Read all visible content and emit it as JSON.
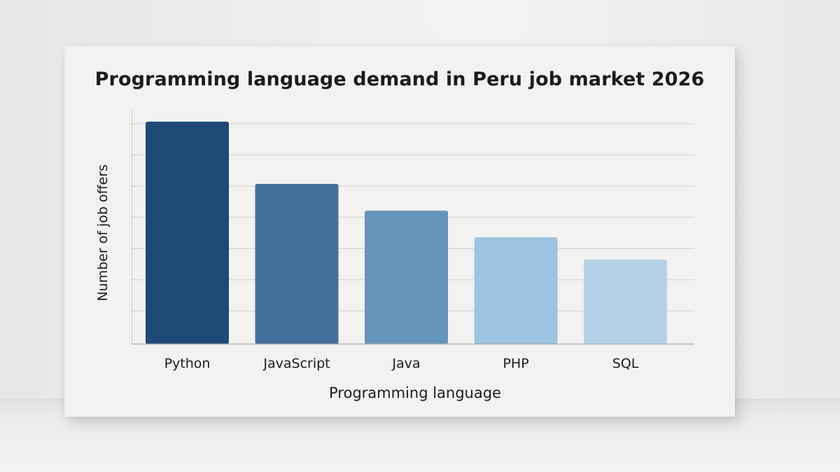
{
  "chart_data": {
    "type": "bar",
    "title": "Programming language demand in Peru job market 2026",
    "xlabel": "Programming language",
    "ylabel": "Number of job offers",
    "categories": [
      "Python",
      "JavaScript",
      "Java",
      "PHP",
      "SQL"
    ],
    "values": [
      100,
      72,
      60,
      48,
      38
    ],
    "ylim": [
      0,
      100
    ],
    "grid": true,
    "legend": "none",
    "colors": [
      "#1f4a78",
      "#456f9b",
      "#6594ba",
      "#9cc3df",
      "#b4d2e6"
    ]
  }
}
